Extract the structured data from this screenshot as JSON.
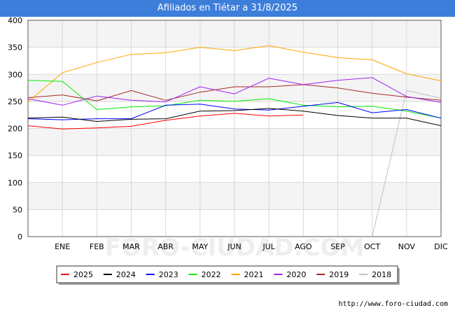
{
  "title": "Afiliados en Tiétar a 31/8/2025",
  "watermark": "FORO-CIUDAD.COM",
  "footer_url": "http://www.foro-ciudad.com",
  "chart_data": {
    "type": "line",
    "categories": [
      "",
      "ENE",
      "FEB",
      "MAR",
      "ABR",
      "MAY",
      "JUN",
      "JUL",
      "AGO",
      "SEP",
      "OCT",
      "NOV",
      "DIC"
    ],
    "yticks": [
      0,
      50,
      100,
      150,
      200,
      250,
      300,
      350,
      400
    ],
    "ylim": [
      0,
      400
    ],
    "grid": true,
    "legend_position": "bottom",
    "series": [
      {
        "name": "2025",
        "color": "#ff0000",
        "values": [
          205,
          199,
          201,
          204,
          215,
          223,
          228,
          223,
          225,
          null,
          null,
          null,
          null
        ]
      },
      {
        "name": "2024",
        "color": "#000000",
        "values": [
          219,
          221,
          213,
          217,
          218,
          232,
          233,
          237,
          232,
          224,
          219,
          219,
          205
        ]
      },
      {
        "name": "2023",
        "color": "#0000ff",
        "values": [
          218,
          216,
          218,
          218,
          243,
          245,
          236,
          234,
          241,
          248,
          229,
          235,
          219
        ]
      },
      {
        "name": "2022",
        "color": "#00ee00",
        "values": [
          289,
          287,
          235,
          240,
          242,
          252,
          250,
          255,
          243,
          240,
          241,
          232,
          219
        ]
      },
      {
        "name": "2021",
        "color": "#ffa500",
        "values": [
          249,
          303,
          322,
          337,
          340,
          350,
          344,
          353,
          341,
          331,
          327,
          301,
          288
        ]
      },
      {
        "name": "2020",
        "color": "#a020f0",
        "values": [
          255,
          243,
          260,
          252,
          249,
          277,
          264,
          293,
          281,
          289,
          294,
          259,
          248
        ]
      },
      {
        "name": "2019",
        "color": "#a52a2a",
        "values": [
          257,
          262,
          251,
          270,
          252,
          267,
          277,
          277,
          281,
          275,
          265,
          258,
          252
        ]
      },
      {
        "name": "2018",
        "color": "#c0c0c0",
        "values": [
          null,
          null,
          null,
          null,
          null,
          null,
          null,
          null,
          null,
          null,
          0,
          270,
          256
        ]
      }
    ]
  }
}
